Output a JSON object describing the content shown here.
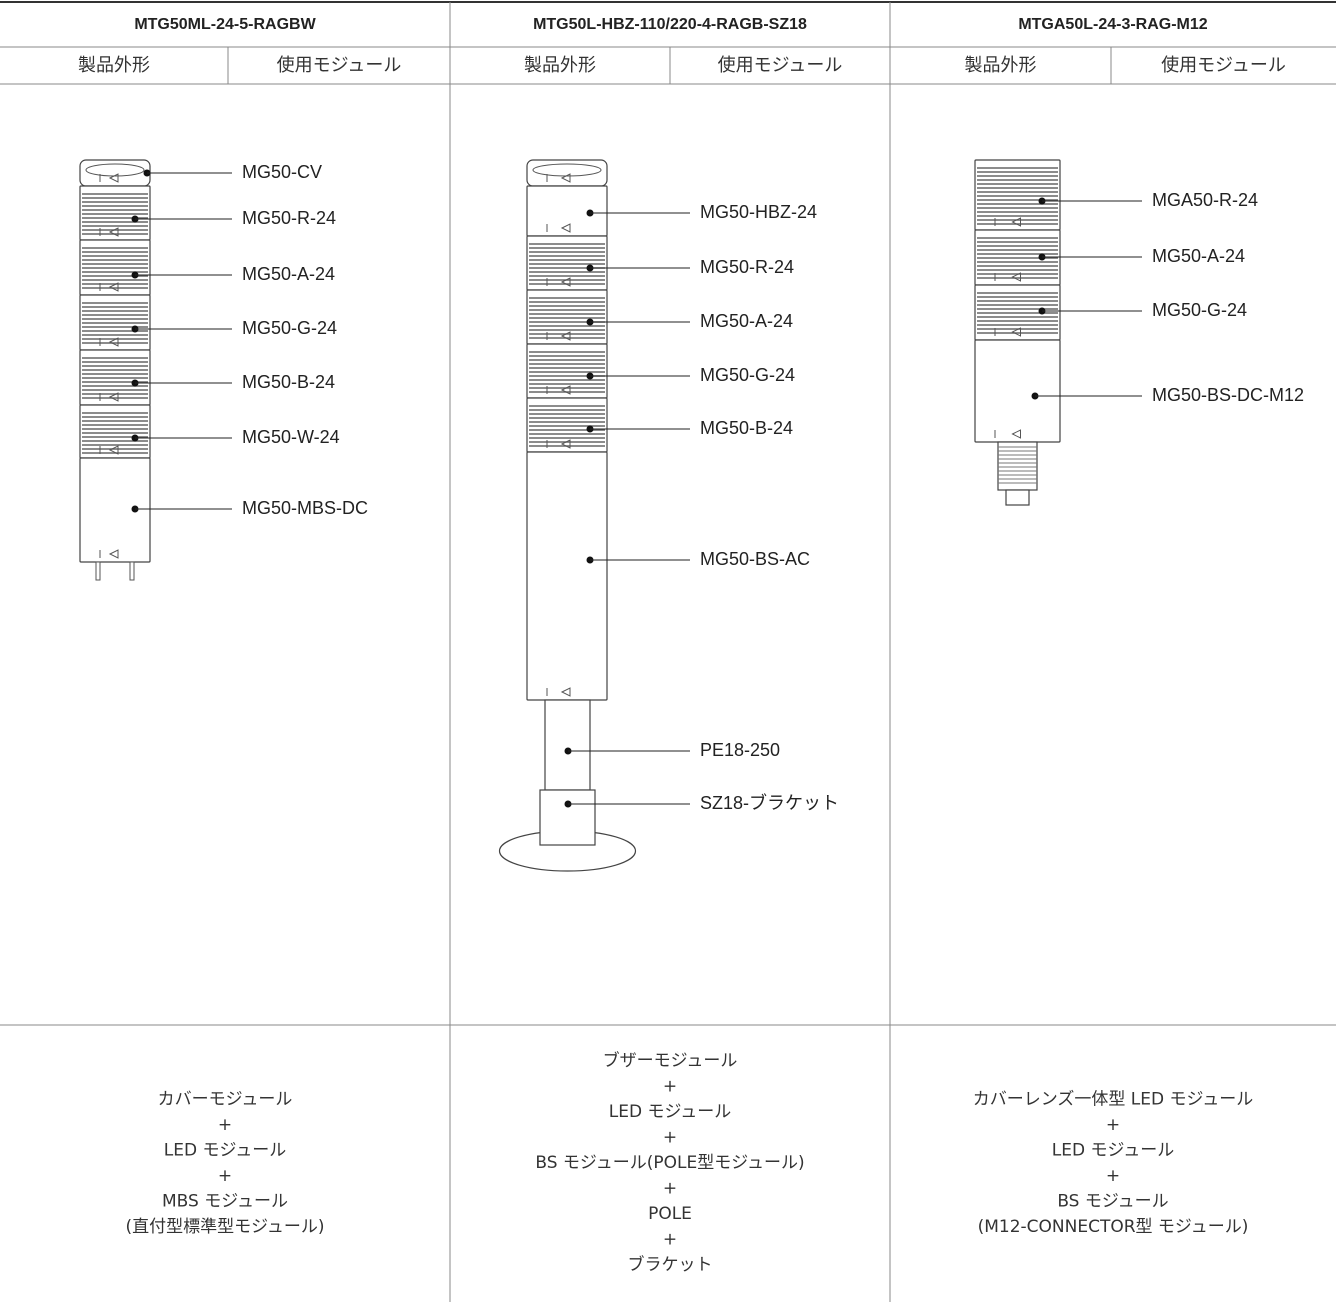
{
  "columns": [
    {
      "title": "MTG50ML-24-5-RAGBW",
      "headers": [
        "製品外形",
        "使用モジュール"
      ],
      "labels": [
        "MG50-CV",
        "MG50-R-24",
        "MG50-A-24",
        "MG50-G-24",
        "MG50-B-24",
        "MG50-W-24",
        "MG50-MBS-DC"
      ],
      "composition": [
        "カバーモジュール",
        "+",
        "LED モジュール",
        "+",
        "MBS モジュール",
        "(直付型標準型モジュール)"
      ]
    },
    {
      "title": "MTG50L-HBZ-110/220-4-RAGB-SZ18",
      "headers": [
        "製品外形",
        "使用モジュール"
      ],
      "labels": [
        "MG50-HBZ-24",
        "MG50-R-24",
        "MG50-A-24",
        "MG50-G-24",
        "MG50-B-24",
        "MG50-BS-AC",
        "PE18-250",
        "SZ18-ブラケット"
      ],
      "composition": [
        "ブザーモジュール",
        "+",
        "LED モジュール",
        "+",
        "BS モジュール(POLE型モジュール)",
        "+",
        "POLE",
        "+",
        "ブラケット"
      ]
    },
    {
      "title": "MTGA50L-24-3-RAG-M12",
      "headers": [
        "製品外形",
        "使用モジュール"
      ],
      "labels": [
        "MGA50-R-24",
        "MG50-A-24",
        "MG50-G-24",
        "MG50-BS-DC-M12"
      ],
      "composition": [
        "カバーレンズ一体型 LED モジュール",
        "+",
        "LED モジュール",
        "+",
        "BS モジュール",
        "(M12-CONNECTOR型 モジュール)"
      ]
    }
  ]
}
